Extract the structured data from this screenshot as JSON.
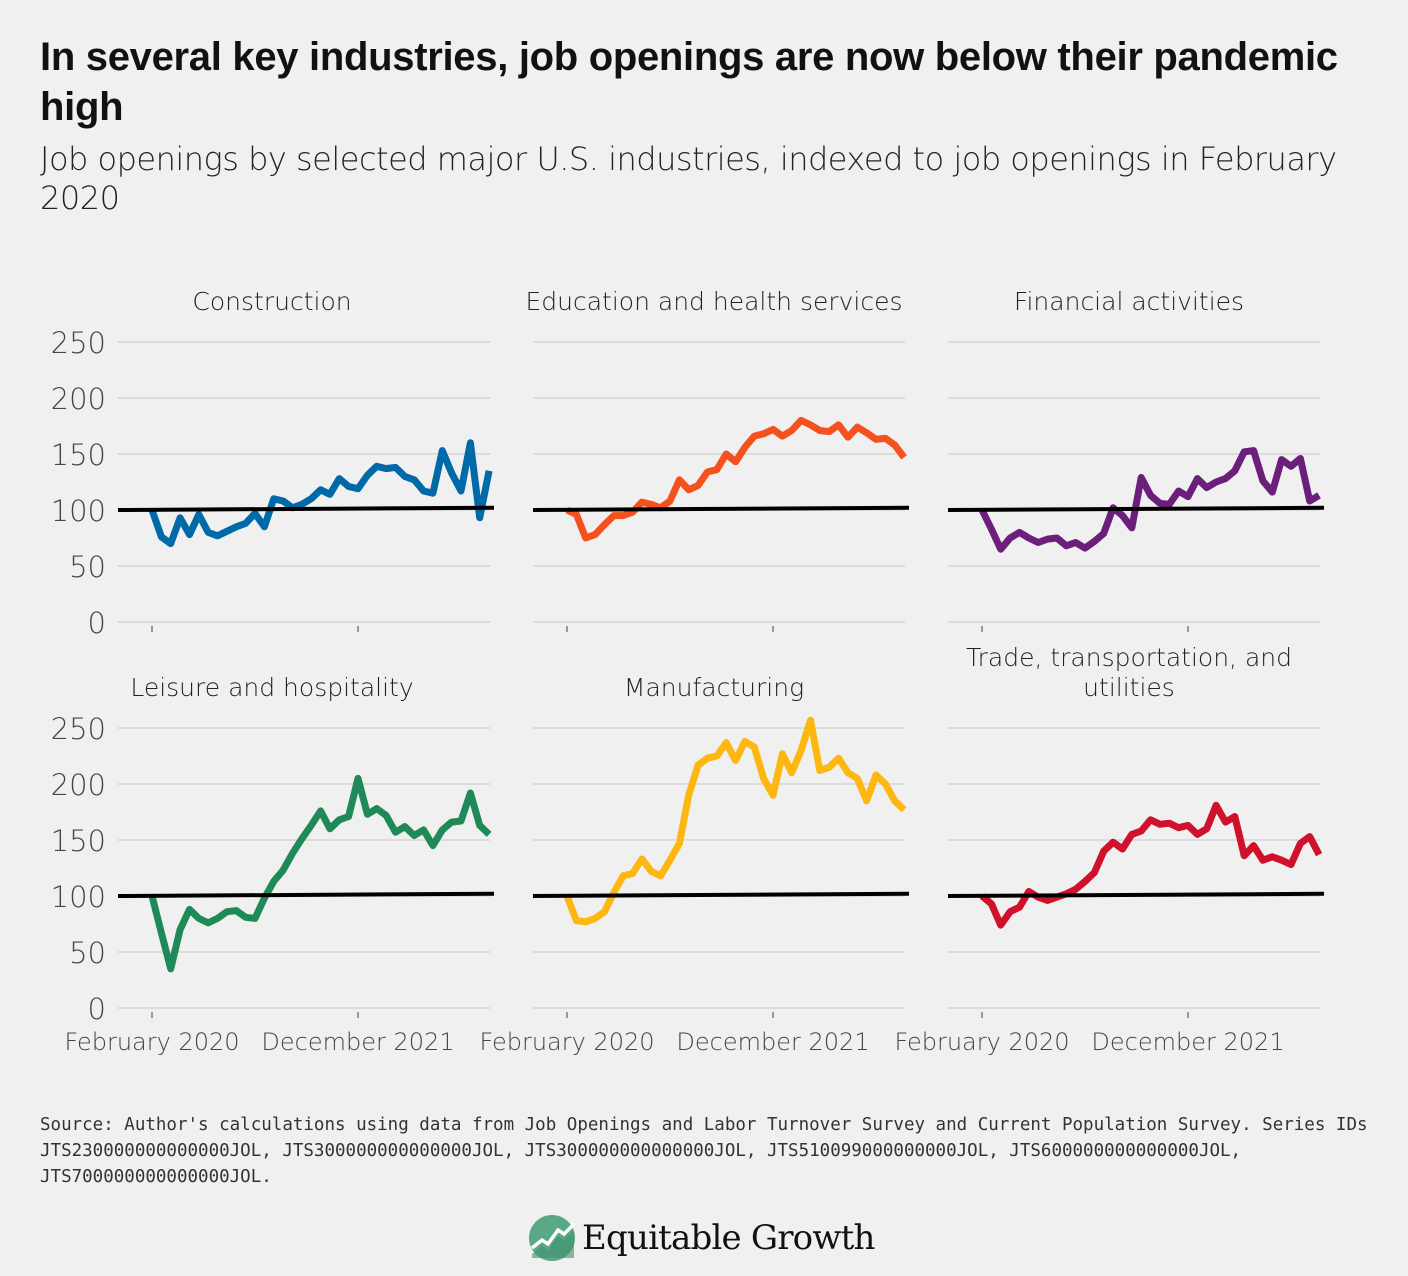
{
  "title": "In several key industries, job openings are now below their pandemic high",
  "subtitle": "Job openings by selected major U.S. industries, indexed to job openings in February 2020",
  "source": "Source: Author's calculations using data from Job Openings and Labor Turnover Survey and Current Population Survey. Series IDs JTS230000000000000JOL, JTS300000000000000JOL, JTS300000000000000JOL, JTS510099000000000JOL, JTS600000000000000JOL, JTS700000000000000JOL.",
  "logo": {
    "text": "Equitable Growth",
    "color": "#5aa886"
  },
  "chart_data": {
    "type": "line",
    "layout": "small-multiples 3x2",
    "x_start": "February 2020",
    "x_end": "February 2023",
    "x_frequency": "monthly",
    "x_tick_labels": [
      "February 2020",
      "December 2021"
    ],
    "y_ticks": [
      0,
      50,
      100,
      150,
      200,
      250
    ],
    "ylim": [
      0,
      250
    ],
    "grid": "horizontal",
    "reference_line": {
      "value_start": 100,
      "value_end": 102,
      "color": "#000000"
    },
    "panels": [
      {
        "title": "Construction",
        "color": "#0069a8",
        "values": [
          100,
          76,
          70,
          93,
          78,
          96,
          80,
          77,
          81,
          85,
          88,
          97,
          85,
          110,
          108,
          102,
          105,
          110,
          118,
          114,
          128,
          121,
          119,
          131,
          139,
          137,
          138,
          130,
          127,
          117,
          115,
          153,
          133,
          117,
          160,
          93,
          135
        ]
      },
      {
        "title": "Education and health services",
        "color": "#f4511e",
        "values": [
          100,
          96,
          75,
          78,
          87,
          95,
          95,
          98,
          107,
          105,
          102,
          108,
          127,
          118,
          122,
          134,
          136,
          150,
          143,
          156,
          166,
          168,
          172,
          166,
          171,
          180,
          176,
          171,
          170,
          176,
          165,
          174,
          169,
          163,
          164,
          158,
          147
        ]
      },
      {
        "title": "Financial activities",
        "color": "#6b1f7a",
        "values": [
          100,
          83,
          65,
          75,
          80,
          75,
          71,
          74,
          75,
          68,
          71,
          66,
          72,
          79,
          102,
          95,
          84,
          129,
          113,
          106,
          105,
          117,
          112,
          128,
          120,
          125,
          128,
          135,
          152,
          153,
          126,
          116,
          145,
          139,
          146,
          108,
          113
        ]
      },
      {
        "title": "Leisure and hospitality",
        "color": "#1f8a58",
        "values": [
          100,
          67,
          35,
          70,
          88,
          80,
          76,
          80,
          86,
          87,
          81,
          80,
          98,
          113,
          123,
          138,
          151,
          163,
          176,
          160,
          168,
          171,
          205,
          173,
          178,
          172,
          157,
          162,
          154,
          159,
          145,
          159,
          166,
          167,
          192,
          163,
          155
        ]
      },
      {
        "title": "Manufacturing",
        "color": "#fcb711",
        "values": [
          100,
          78,
          77,
          80,
          86,
          103,
          118,
          120,
          133,
          122,
          118,
          132,
          147,
          190,
          217,
          223,
          225,
          237,
          221,
          238,
          233,
          205,
          190,
          227,
          210,
          230,
          257,
          212,
          215,
          223,
          210,
          205,
          185,
          208,
          200,
          185,
          177
        ]
      },
      {
        "title": "Trade, transportation, and utilities",
        "title_lines": [
          "Trade, transportation, and",
          "utilities"
        ],
        "color": "#d0112b",
        "values": [
          100,
          93,
          74,
          86,
          90,
          104,
          99,
          96,
          99,
          102,
          106,
          113,
          121,
          140,
          148,
          142,
          155,
          158,
          168,
          164,
          165,
          161,
          163,
          155,
          160,
          181,
          166,
          171,
          136,
          145,
          132,
          135,
          132,
          128,
          147,
          153,
          137
        ]
      }
    ]
  }
}
